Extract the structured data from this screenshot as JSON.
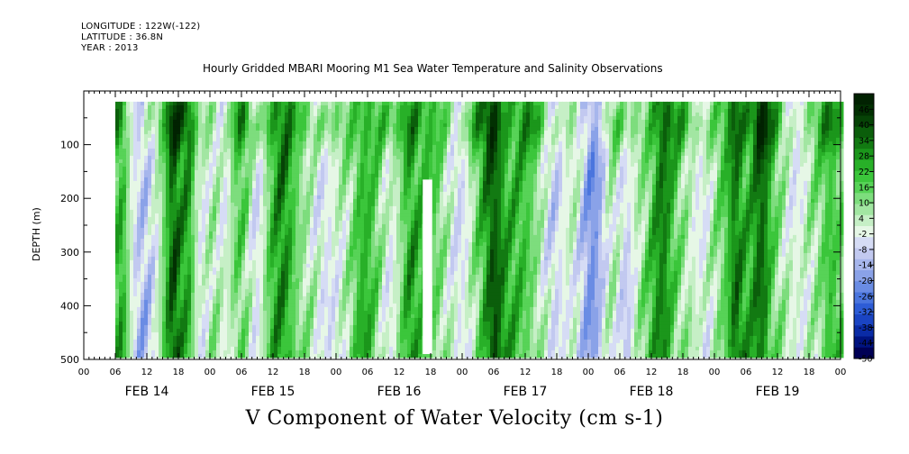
{
  "header": {
    "longitude": "LONGITUDE : 122W(-122)",
    "latitude": "LATITUDE : 36.8N",
    "year": "YEAR : 2013"
  },
  "chart_data": {
    "type": "heatmap",
    "title": "Hourly Gridded MBARI Mooring M1 Sea Water Temperature and Salinity Observations",
    "xlabel": "V Component of Water Velocity (cm s-1)",
    "ylabel": "DEPTH (m)",
    "x_range_hours": [
      0,
      144
    ],
    "data_start_hour": 6,
    "data_end_hour": 144,
    "ylim": [
      500,
      0
    ],
    "data_depth_range": [
      20,
      490
    ],
    "y_ticks": [
      100,
      200,
      300,
      400,
      500
    ],
    "x_tick_labels": [
      "00",
      "06",
      "12",
      "18",
      "00",
      "06",
      "12",
      "18",
      "00",
      "06",
      "12",
      "18",
      "00",
      "06",
      "12",
      "18",
      "00",
      "06",
      "12",
      "18",
      "00",
      "06",
      "12",
      "18",
      "00"
    ],
    "day_labels": [
      "FEB 14",
      "FEB 15",
      "FEB 16",
      "FEB 17",
      "FEB 18",
      "FEB 19"
    ],
    "gap": {
      "start_hour": 64.5,
      "end_hour": 66.3,
      "top_depth": 165,
      "bottom_depth": 490
    },
    "colorbar": {
      "labels": [
        "46",
        "40",
        "34",
        "28",
        "22",
        "16",
        "10",
        "4",
        "-2",
        "-8",
        "-14",
        "-20",
        "-26",
        "-32",
        "-38",
        "-44",
        "-50"
      ],
      "min": -50,
      "max": 52,
      "step": 3,
      "colors": [
        "#000055",
        "#001380",
        "#0a2ba6",
        "#1a44c3",
        "#2d5cd6",
        "#4a75de",
        "#6a8ce4",
        "#8aa2e8",
        "#a7b6ec",
        "#c2c9f0",
        "#d6dcf5",
        "#e6f7e6",
        "#c6efc6",
        "#a2e6a2",
        "#7ddd7d",
        "#57d357",
        "#3bc63b",
        "#28b028",
        "#1b961b",
        "#127a12",
        "#0b5e0b",
        "#064306",
        "#023002",
        "#012201"
      ]
    },
    "field_model": {
      "note_free": true,
      "bands": [
        {
          "center_hour": 11,
          "width_hours": 3,
          "value": -18
        },
        {
          "center_hour": 22,
          "width_hours": 2.5,
          "value": -12
        },
        {
          "center_hour": 27,
          "width_hours": 2,
          "value": -16
        },
        {
          "center_hour": 33,
          "width_hours": 2,
          "value": -14
        },
        {
          "center_hour": 46,
          "width_hours": 3,
          "value": -14
        },
        {
          "center_hour": 58,
          "width_hours": 2,
          "value": -8
        },
        {
          "center_hour": 72,
          "width_hours": 3,
          "value": -18
        },
        {
          "center_hour": 90,
          "width_hours": 3,
          "value": -16
        },
        {
          "center_hour": 97,
          "width_hours": 3,
          "value": -20
        },
        {
          "center_hour": 103,
          "width_hours": 2,
          "value": -12
        },
        {
          "center_hour": 118,
          "width_hours": 3,
          "value": -16
        },
        {
          "center_hour": 136,
          "width_hours": 3,
          "value": -14
        },
        {
          "center_hour": 7,
          "width_hours": 1.5,
          "value": 12
        },
        {
          "center_hour": 17,
          "width_hours": 1.5,
          "value": 14
        },
        {
          "center_hour": 20,
          "width_hours": 1.2,
          "value": 10
        },
        {
          "center_hour": 38,
          "width_hours": 2,
          "value": 8
        },
        {
          "center_hour": 53,
          "width_hours": 2,
          "value": 8
        },
        {
          "center_hour": 62,
          "width_hours": 1.5,
          "value": 8
        },
        {
          "center_hour": 78,
          "width_hours": 2,
          "value": 16
        },
        {
          "center_hour": 110,
          "width_hours": 2,
          "value": 10
        },
        {
          "center_hour": 124,
          "width_hours": 1.5,
          "value": 12
        },
        {
          "center_hour": 129,
          "width_hours": 1.5,
          "value": 10
        },
        {
          "center_hour": 142,
          "width_hours": 1.5,
          "value": 8
        }
      ]
    }
  }
}
